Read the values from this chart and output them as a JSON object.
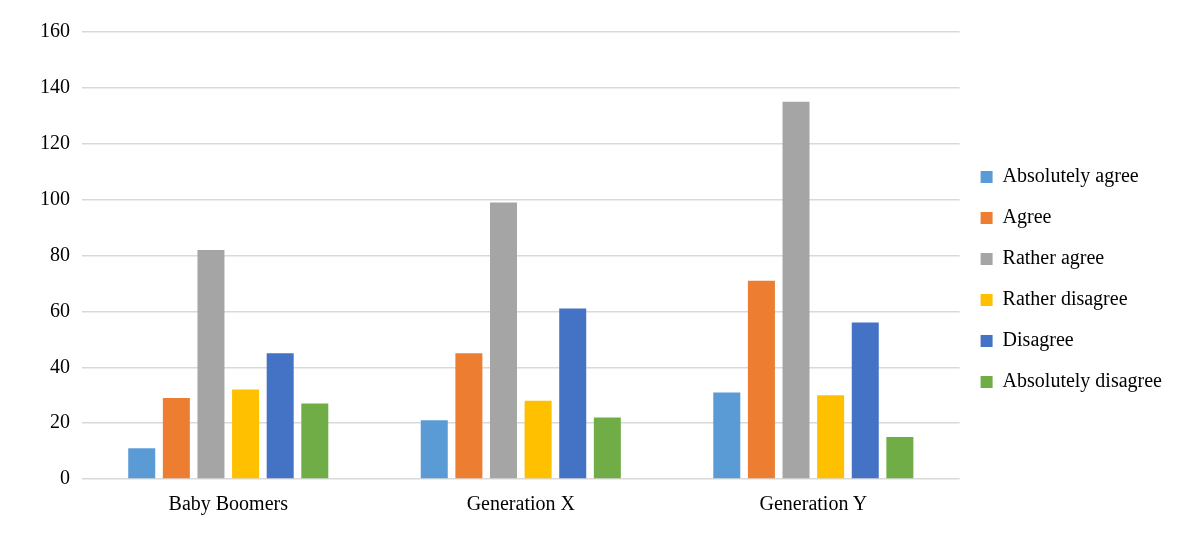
{
  "chart_data": {
    "type": "bar",
    "categories": [
      "Baby Boomers",
      "Generation X",
      "Generation Y"
    ],
    "series": [
      {
        "name": "Absolutely agree",
        "color": "#5b9bd5",
        "values": [
          11,
          21,
          31
        ]
      },
      {
        "name": "Agree",
        "color": "#ed7d31",
        "values": [
          29,
          45,
          71
        ]
      },
      {
        "name": "Rather agree",
        "color": "#a5a5a5",
        "values": [
          82,
          99,
          135
        ]
      },
      {
        "name": "Rather disagree",
        "color": "#ffc000",
        "values": [
          32,
          28,
          30
        ]
      },
      {
        "name": "Disagree",
        "color": "#4472c4",
        "values": [
          45,
          61,
          56
        ]
      },
      {
        "name": "Absolutely disagree",
        "color": "#70ad47",
        "values": [
          27,
          22,
          15
        ]
      }
    ],
    "ylim": [
      0,
      160
    ],
    "yticks": [
      0,
      20,
      40,
      60,
      80,
      100,
      120,
      140,
      160
    ],
    "grid": "y",
    "legend": "right"
  }
}
